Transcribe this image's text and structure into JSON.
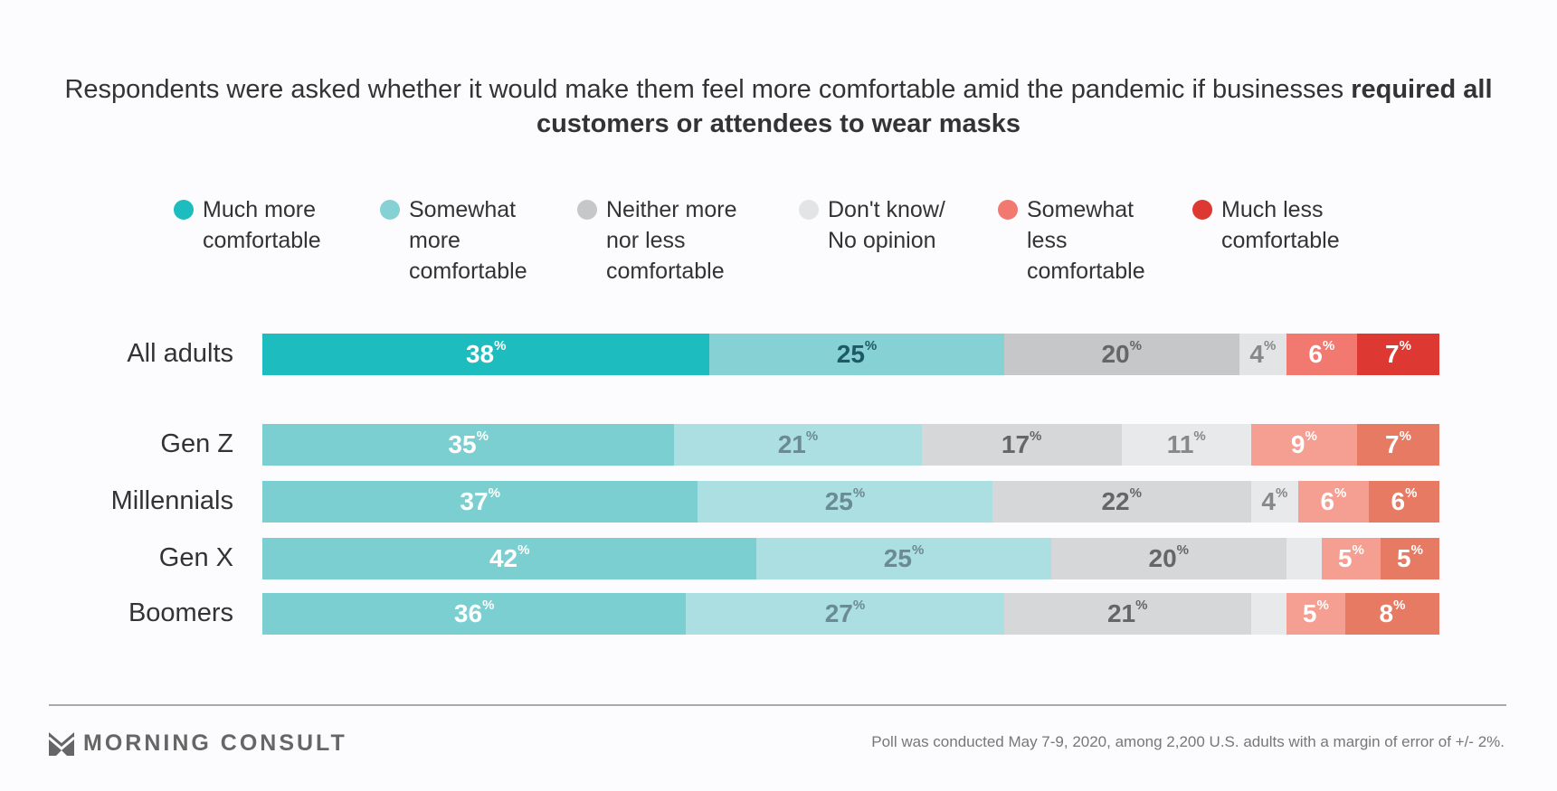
{
  "title": {
    "plain": "Respondents were asked whether it would make them feel more comfortable amid the pandemic if businesses ",
    "bold": "required all customers or attendees to wear masks"
  },
  "chart_data": {
    "type": "bar",
    "orientation": "horizontal-stacked-100",
    "legend_position": "top",
    "series": [
      {
        "name": "Much more comfortable",
        "lines": [
          "Much more",
          "comfortable"
        ],
        "color_all": "#1dbdbf",
        "color_group": "#7ccfd0"
      },
      {
        "name": "Somewhat more comfortable",
        "lines": [
          "Somewhat",
          "more",
          "comfortable"
        ],
        "color_all": "#86d1d4",
        "color_group": "#abdfe1"
      },
      {
        "name": "Neither more nor less comfortable",
        "lines": [
          "Neither more",
          "nor less",
          "comfortable"
        ],
        "color_all": "#c6c7c9",
        "color_group": "#d6d7d9"
      },
      {
        "name": "Don't know/ No opinion",
        "lines": [
          "Don't know/",
          "No opinion"
        ],
        "color_all": "#e3e4e6",
        "color_group": "#e8e9eb"
      },
      {
        "name": "Somewhat less comfortable",
        "lines": [
          "Somewhat",
          "less",
          "comfortable"
        ],
        "color_all": "#f27970",
        "color_group": "#f59e92"
      },
      {
        "name": "Much less comfortable",
        "lines": [
          "Much less",
          "comfortable"
        ],
        "color_all": "#de3832",
        "color_group": "#e67a62"
      }
    ],
    "categories": [
      "All adults",
      "Gen Z",
      "Millennials",
      "Gen X",
      "Boomers"
    ],
    "values": [
      [
        38,
        25,
        20,
        4,
        6,
        7
      ],
      [
        35,
        21,
        17,
        11,
        9,
        7
      ],
      [
        37,
        25,
        22,
        4,
        6,
        6
      ],
      [
        42,
        25,
        20,
        3,
        5,
        5
      ],
      [
        36,
        27,
        21,
        3,
        5,
        8
      ]
    ],
    "labeled": [
      [
        true,
        true,
        true,
        true,
        true,
        true
      ],
      [
        true,
        true,
        true,
        true,
        true,
        true
      ],
      [
        true,
        true,
        true,
        true,
        true,
        true
      ],
      [
        true,
        true,
        true,
        false,
        true,
        true
      ],
      [
        true,
        true,
        true,
        false,
        true,
        true
      ]
    ],
    "label_suffix": "%"
  },
  "footer": {
    "logo": "MORNING CONSULT",
    "note": "Poll was conducted May 7-9, 2020, among 2,200 U.S. adults with a margin of error of +/- 2%."
  }
}
